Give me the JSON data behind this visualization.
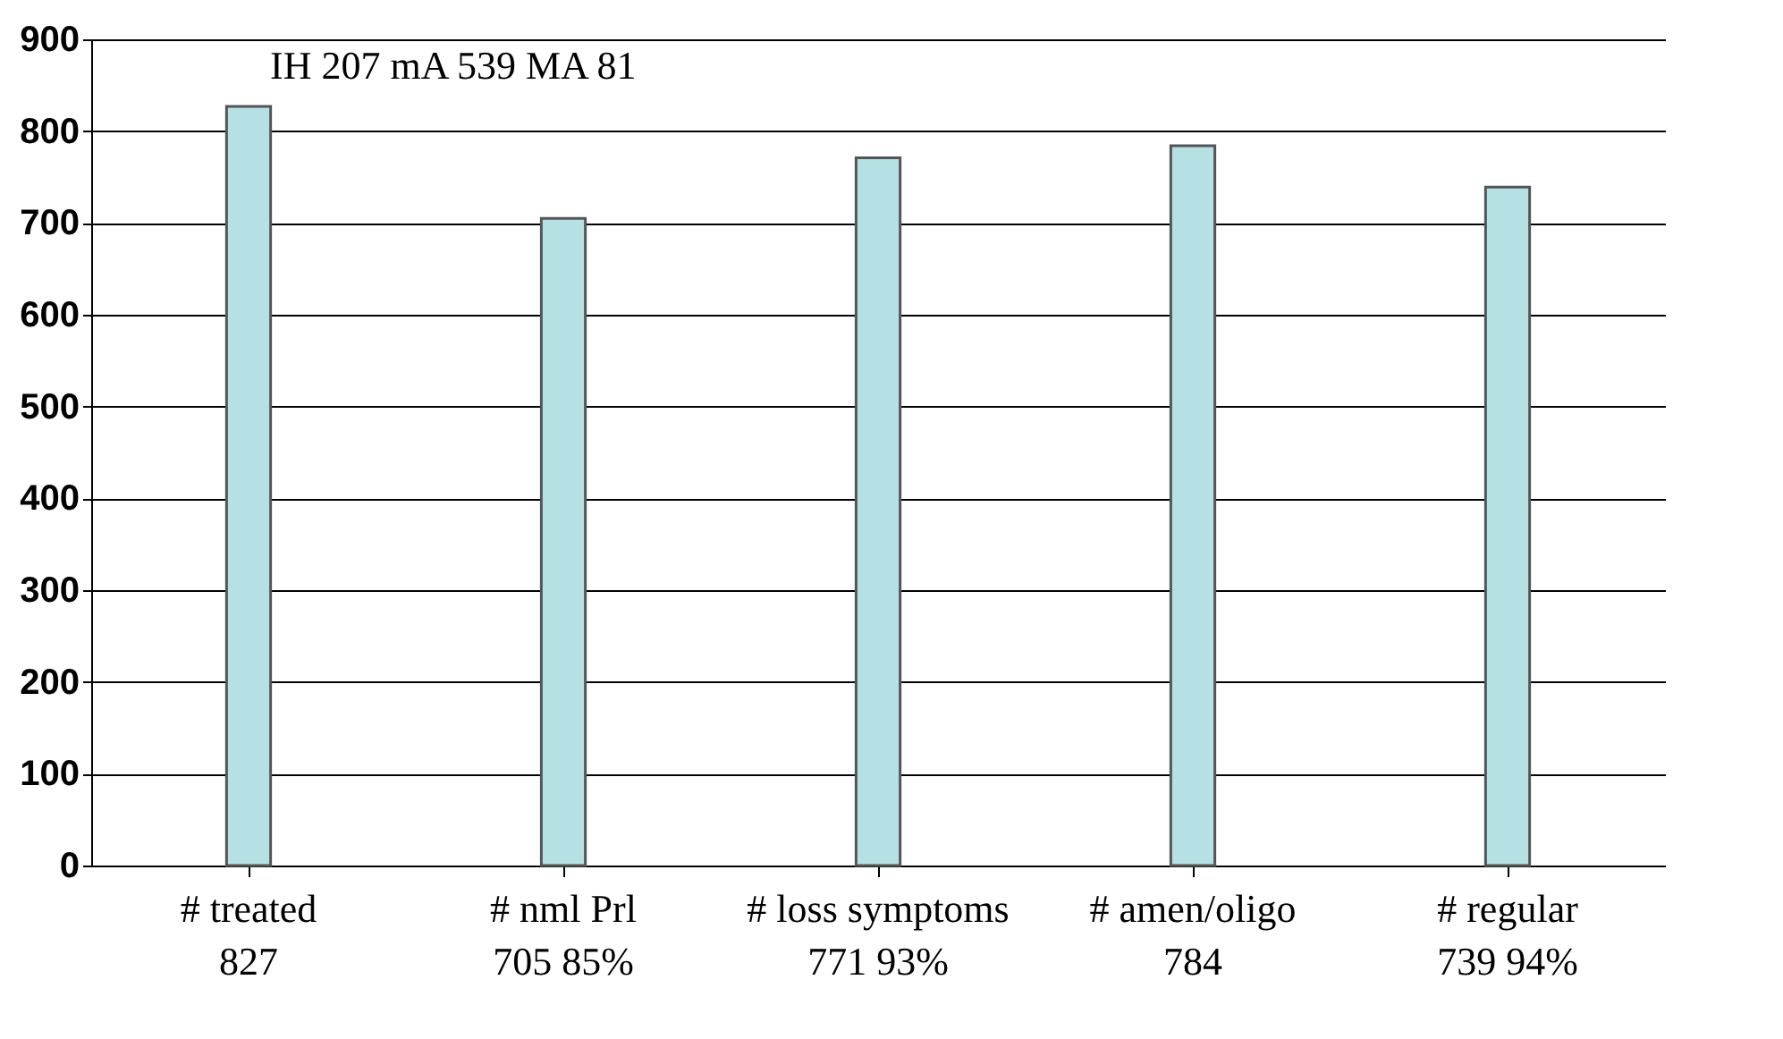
{
  "chart_data": {
    "type": "bar",
    "categories": [
      "# treated",
      "# nml Prl",
      "# loss symptoms",
      "# amen/oligo",
      "# regular"
    ],
    "values": [
      827,
      705,
      771,
      784,
      739
    ],
    "value_labels": [
      "827",
      "705  85%",
      "771  93%",
      "784",
      "739  94%"
    ],
    "color": "#b5e0e4",
    "ylim": [
      0,
      900
    ],
    "yticks": [
      0,
      100,
      200,
      300,
      400,
      500,
      600,
      700,
      800,
      900
    ],
    "grid": "y",
    "annotations": [
      "IH 207    mA  539   MA  81"
    ]
  }
}
